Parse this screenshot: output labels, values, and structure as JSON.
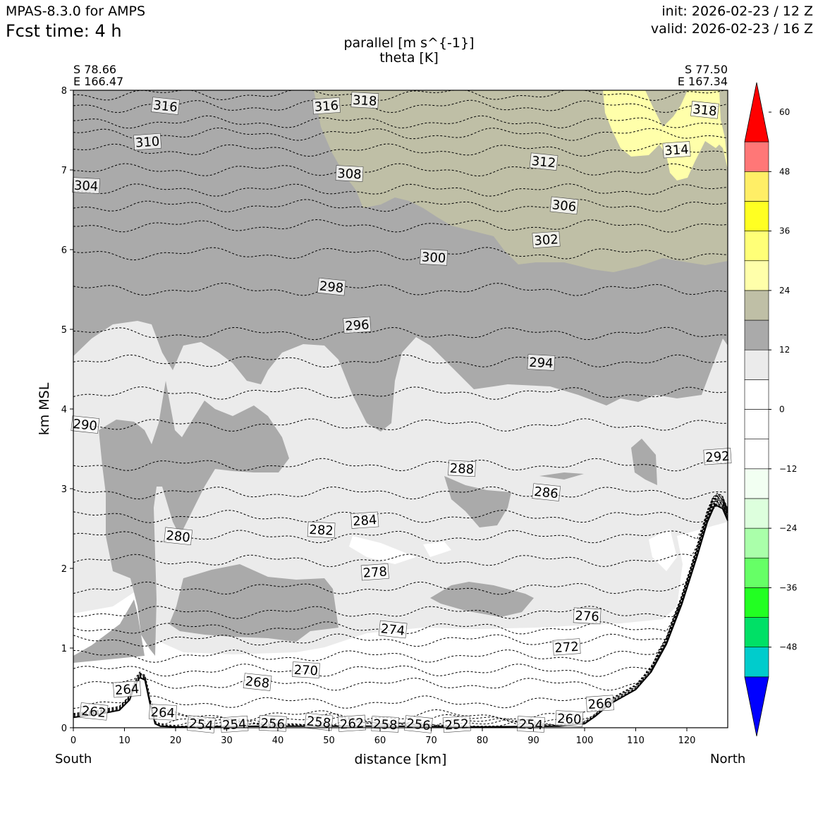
{
  "header": {
    "model": "MPAS-8.3.0 for AMPS",
    "fcst_time": "Fcst time:    4 h",
    "init": "init: 2026-02-23 / 12 Z",
    "valid": "valid: 2026-02-23 / 16 Z",
    "field_1": "parallel [m s^{-1}]",
    "field_2": "theta [K]"
  },
  "endpoints": {
    "south_lat": "S 78.66",
    "south_lon": "E 166.47",
    "north_lat": "S 77.50",
    "north_lon": "E 167.34",
    "south_label": "South",
    "north_label": "North"
  },
  "chart_data": {
    "type": "contour-cross-section",
    "xlabel": "distance [km]",
    "ylabel": "km MSL",
    "xlim": [
      0,
      128
    ],
    "ylim": [
      0,
      8
    ],
    "x_ticks": [
      0,
      10,
      20,
      30,
      40,
      50,
      60,
      70,
      80,
      90,
      100,
      110,
      120
    ],
    "y_ticks": [
      0,
      1,
      2,
      3,
      4,
      5,
      6,
      7,
      8
    ],
    "colorbar": {
      "levels": [
        -60,
        -54,
        -48,
        -42,
        -36,
        -30,
        -24,
        -18,
        -12,
        -6,
        0,
        6,
        12,
        18,
        24,
        30,
        36,
        42,
        48,
        54,
        60
      ],
      "colors": [
        "#0000ff",
        "#00cccc",
        "#00e066",
        "#22ff22",
        "#66ff66",
        "#aaffaa",
        "#ddffdd",
        "#f2fff2",
        "#ffffff",
        "#ffffff",
        "#ffffff",
        "#ebebeb",
        "#aaaaaa",
        "#bfbfa6",
        "#ffffaa",
        "#ffff77",
        "#ffff22",
        "#ffee66",
        "#ff7777",
        "#ff0000"
      ],
      "tick_labels": [
        "60",
        "48",
        "36",
        "24",
        "12",
        "0",
        "−12",
        "−24",
        "−36",
        "−48"
      ],
      "tick_values": [
        60,
        48,
        36,
        24,
        12,
        0,
        -12,
        -24,
        -36,
        -48
      ]
    },
    "terrain": {
      "x": [
        0,
        5,
        9,
        11,
        12,
        13,
        14,
        15,
        16,
        17,
        20,
        40,
        60,
        80,
        95,
        100,
        102,
        105,
        110,
        113,
        116,
        119,
        122,
        124,
        125.5,
        127,
        128
      ],
      "y": [
        0.13,
        0.17,
        0.22,
        0.35,
        0.52,
        0.63,
        0.6,
        0.3,
        0.05,
        0.02,
        0.01,
        0.02,
        0.02,
        0.01,
        0.02,
        0.05,
        0.14,
        0.3,
        0.48,
        0.7,
        1.05,
        1.55,
        2.15,
        2.58,
        2.8,
        2.75,
        2.6
      ]
    },
    "theta_lines": {
      "values": [
        254,
        256,
        258,
        260,
        262,
        264,
        266,
        268,
        270,
        272,
        274,
        276,
        278,
        280,
        282,
        284,
        286,
        288,
        290,
        292,
        294,
        296,
        298,
        300,
        302,
        304,
        306,
        308,
        310,
        312,
        314,
        316,
        318
      ],
      "heights_km": [
        0.02,
        0.04,
        0.06,
        0.1,
        0.15,
        0.32,
        0.55,
        0.72,
        0.9,
        1.1,
        1.25,
        1.45,
        1.75,
        2.1,
        2.4,
        2.65,
        2.95,
        3.3,
        3.8,
        4.2,
        4.6,
        4.95,
        5.5,
        5.95,
        6.3,
        6.55,
        6.75,
        7.0,
        7.25,
        7.45,
        7.6,
        7.8,
        7.95
      ]
    },
    "contour_labels": [
      {
        "text": "316",
        "x": 18,
        "y": 7.8
      },
      {
        "text": "316",
        "x": 49.5,
        "y": 7.8
      },
      {
        "text": "318",
        "x": 57,
        "y": 7.87
      },
      {
        "text": "318",
        "x": 123.5,
        "y": 7.75
      },
      {
        "text": "310",
        "x": 14.5,
        "y": 7.35
      },
      {
        "text": "308",
        "x": 54,
        "y": 6.95
      },
      {
        "text": "312",
        "x": 92,
        "y": 7.1
      },
      {
        "text": "314",
        "x": 118,
        "y": 7.25
      },
      {
        "text": "304",
        "x": 2.5,
        "y": 6.8
      },
      {
        "text": "306",
        "x": 96,
        "y": 6.55
      },
      {
        "text": "302",
        "x": 92.5,
        "y": 6.12
      },
      {
        "text": "300",
        "x": 70.5,
        "y": 5.9
      },
      {
        "text": "298",
        "x": 50.5,
        "y": 5.53
      },
      {
        "text": "296",
        "x": 55.5,
        "y": 5.05
      },
      {
        "text": "294",
        "x": 91.5,
        "y": 4.58
      },
      {
        "text": "290",
        "x": 2.3,
        "y": 3.8
      },
      {
        "text": "292",
        "x": 126,
        "y": 3.4
      },
      {
        "text": "288",
        "x": 76,
        "y": 3.25
      },
      {
        "text": "286",
        "x": 92.5,
        "y": 2.95
      },
      {
        "text": "284",
        "x": 57,
        "y": 2.6
      },
      {
        "text": "282",
        "x": 48.5,
        "y": 2.48
      },
      {
        "text": "280",
        "x": 20.5,
        "y": 2.4
      },
      {
        "text": "278",
        "x": 59,
        "y": 1.95
      },
      {
        "text": "276",
        "x": 100.5,
        "y": 1.4
      },
      {
        "text": "274",
        "x": 62.5,
        "y": 1.23
      },
      {
        "text": "272",
        "x": 96.5,
        "y": 1.01
      },
      {
        "text": "270",
        "x": 45.5,
        "y": 0.72
      },
      {
        "text": "268",
        "x": 36,
        "y": 0.57
      },
      {
        "text": "264",
        "x": 10.5,
        "y": 0.48
      },
      {
        "text": "264",
        "x": 17.5,
        "y": 0.19
      },
      {
        "text": "262",
        "x": 4,
        "y": 0.2
      },
      {
        "text": "266",
        "x": 103,
        "y": 0.3
      },
      {
        "text": "260",
        "x": 97,
        "y": 0.11
      },
      {
        "text": "254",
        "x": 25,
        "y": 0.04
      },
      {
        "text": "254",
        "x": 31.5,
        "y": 0.04
      },
      {
        "text": "256",
        "x": 39,
        "y": 0.05
      },
      {
        "text": "258",
        "x": 48,
        "y": 0.07
      },
      {
        "text": "262",
        "x": 54.5,
        "y": 0.05
      },
      {
        "text": "258",
        "x": 61,
        "y": 0.04
      },
      {
        "text": "256",
        "x": 67.5,
        "y": 0.04
      },
      {
        "text": "252",
        "x": 75,
        "y": 0.04
      },
      {
        "text": "254",
        "x": 89.5,
        "y": 0.04
      }
    ]
  }
}
